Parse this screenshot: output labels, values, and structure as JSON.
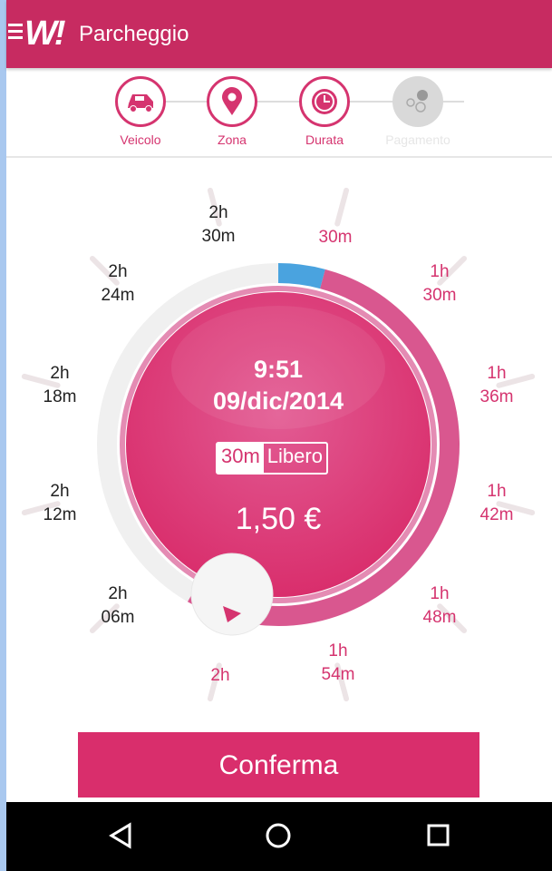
{
  "app_bar": {
    "title": "Parcheggio",
    "logo": "W!",
    "menu_icon": "hamburger-icon"
  },
  "steps": [
    {
      "label": "Veicolo",
      "icon": "car-icon",
      "state": "done"
    },
    {
      "label": "Zona",
      "icon": "map-pin-icon",
      "state": "done"
    },
    {
      "label": "Durata",
      "icon": "clock-icon",
      "state": "active"
    },
    {
      "label": "Pagamento",
      "icon": "coins-icon",
      "state": "disabled"
    }
  ],
  "dial": {
    "labels": [
      {
        "l1": "",
        "l2": "30m",
        "selected": true
      },
      {
        "l1": "1h",
        "l2": "30m",
        "selected": true
      },
      {
        "l1": "1h",
        "l2": "36m",
        "selected": true
      },
      {
        "l1": "1h",
        "l2": "42m",
        "selected": true
      },
      {
        "l1": "1h",
        "l2": "48m",
        "selected": true
      },
      {
        "l1": "1h",
        "l2": "54m",
        "selected": true
      },
      {
        "l1": "",
        "l2": "2h",
        "selected": true
      },
      {
        "l1": "2h",
        "l2": "06m",
        "selected": false
      },
      {
        "l1": "2h",
        "l2": "12m",
        "selected": false
      },
      {
        "l1": "2h",
        "l2": "18m",
        "selected": false
      },
      {
        "l1": "2h",
        "l2": "24m",
        "selected": false
      },
      {
        "l1": "2h",
        "l2": "30m",
        "selected": false
      }
    ],
    "end_time": "9:51",
    "end_date": "09/dic/2014",
    "free_duration": "30m",
    "free_label": "Libero",
    "price": "1,50 €",
    "selected_duration": "2h",
    "colors": {
      "accent": "#d5346f",
      "free": "#4aa3df",
      "track": "#f0f0f0"
    }
  },
  "confirm_label": "Conferma",
  "nav": {
    "back": "back-icon",
    "home": "home-icon",
    "recents": "recents-icon"
  }
}
